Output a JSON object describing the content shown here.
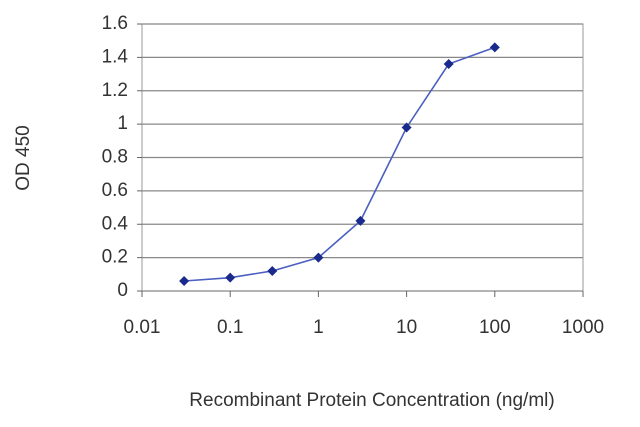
{
  "chart_data": {
    "type": "line",
    "x_label": "Recombinant Protein Concentration (ng/ml)",
    "y_label": "OD 450",
    "x": [
      0.03,
      0.1,
      0.3,
      1,
      3,
      10,
      30,
      100
    ],
    "values": [
      0.06,
      0.08,
      0.12,
      0.2,
      0.42,
      0.98,
      1.36,
      1.46
    ],
    "color": "#1a2a8c",
    "line_color": "#4a5fc0",
    "x_scale": "log",
    "xlim": [
      0.01,
      1000
    ],
    "xticks": [
      0.01,
      0.1,
      1,
      10,
      100,
      1000
    ],
    "ylim": [
      0,
      1.6
    ],
    "yticks": [
      0,
      0.2,
      0.4,
      0.6,
      0.8,
      1,
      1.2,
      1.4,
      1.6
    ],
    "grid": true
  }
}
